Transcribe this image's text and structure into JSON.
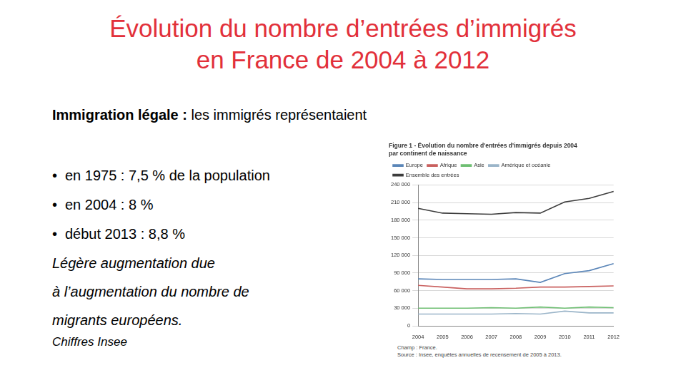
{
  "slide": {
    "title": [
      "Évolution du nombre d’entrées d’immigrés",
      "en France de 2004 à 2012"
    ],
    "heading_bold": "Immigration légale :",
    "heading_text": "les immigrés représentaient",
    "bullets": [
      "en 1975 : 7,5 % de la population",
      "en 2004 : 8 %",
      "début 2013 : 8,8 %"
    ],
    "paragraph": [
      "Légère augmentation due",
      "à l’augmentation du nombre de",
      "migrants européens."
    ],
    "source": "Chiffres Insee"
  },
  "chart_data": {
    "type": "line",
    "title": [
      "Figure 1 - Évolution du nombre d'entrées d'immigrés depuis 2004",
      "par continent de naissance"
    ],
    "categories": [
      "2004",
      "2005",
      "2006",
      "2007",
      "2008",
      "2009",
      "2010",
      "2011",
      "2012"
    ],
    "series": [
      {
        "name": "Europe",
        "color": "#5b86b8",
        "values": [
          80000,
          79000,
          79000,
          79000,
          80000,
          74000,
          89000,
          94000,
          106000
        ]
      },
      {
        "name": "Afrique",
        "color": "#c9605f",
        "values": [
          69000,
          66000,
          63000,
          63000,
          64000,
          66000,
          66000,
          67000,
          68000
        ]
      },
      {
        "name": "Asie",
        "color": "#6fbf73",
        "values": [
          30000,
          30000,
          30000,
          31000,
          30000,
          32000,
          30000,
          32000,
          31000
        ]
      },
      {
        "name": "Amérique et océanie",
        "color": "#9bb5c9",
        "values": [
          20000,
          20000,
          20000,
          20000,
          21000,
          20000,
          25000,
          22000,
          22000
        ]
      },
      {
        "name": "Ensemble des entrées",
        "color": "#3c3c3c",
        "values": [
          200000,
          192000,
          191000,
          190000,
          193000,
          192000,
          211000,
          217000,
          229000
        ]
      }
    ],
    "ylim": [
      0,
      240000
    ],
    "yticks": [
      0,
      {
        "value": 30000,
        "label": "30 000"
      },
      {
        "value": 60000,
        "label": "60 000"
      },
      {
        "value": 90000,
        "label": "90 000"
      },
      {
        "value": 120000,
        "label": "120 000"
      },
      {
        "value": 150000,
        "label": "150 000"
      },
      {
        "value": 180000,
        "label": "180 000"
      },
      {
        "value": 210000,
        "label": "210 000"
      },
      {
        "value": 240000,
        "label": "240 000"
      }
    ],
    "grid": true,
    "legend": "top",
    "notes": [
      "Champ : France.",
      "Source : Insee, enquêtes annuelles de recensement de 2005 à 2013."
    ]
  }
}
